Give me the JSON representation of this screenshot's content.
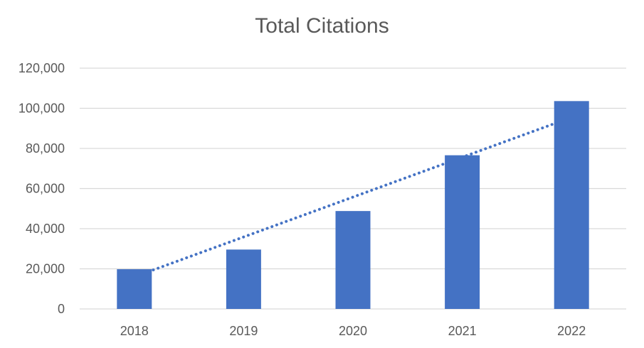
{
  "chart_data": {
    "type": "bar",
    "title": "Total Citations",
    "xlabel": "",
    "ylabel": "",
    "categories": [
      "2018",
      "2019",
      "2020",
      "2021",
      "2022"
    ],
    "values": [
      19800,
      29600,
      48800,
      76600,
      103600
    ],
    "ylim": [
      0,
      120000
    ],
    "yticks": [
      0,
      20000,
      40000,
      60000,
      80000,
      100000,
      120000
    ],
    "ytick_labels": [
      "0",
      "20,000",
      "40,000",
      "60,000",
      "80,000",
      "100,000",
      "120,000"
    ],
    "grid": true,
    "legend": "none",
    "trendline": {
      "type": "linear",
      "style": "dotted",
      "start": [
        2018,
        16000
      ],
      "end": [
        2022,
        95500
      ]
    },
    "colors": {
      "bar": "#4472C4",
      "trendline": "#4472C4",
      "grid": "#D9D9D9",
      "text": "#595959"
    }
  }
}
